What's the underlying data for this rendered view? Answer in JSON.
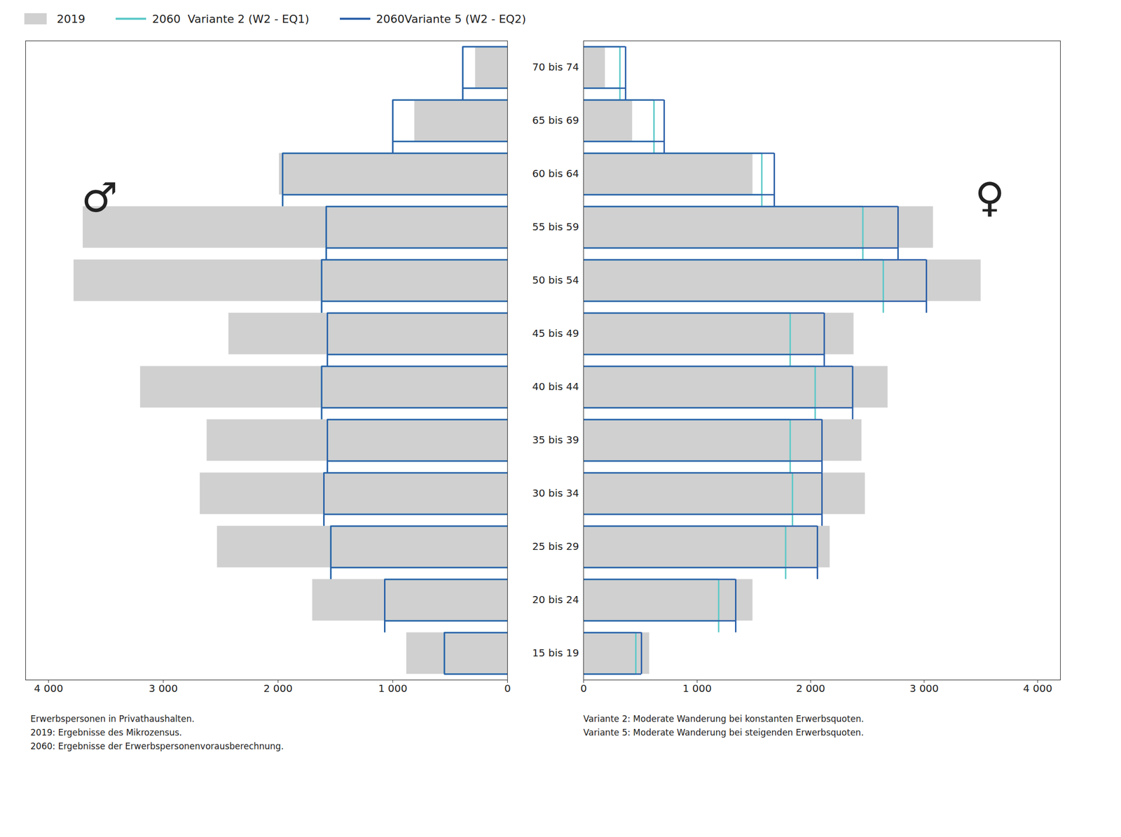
{
  "chart_data": [
    {
      "type": "bar",
      "orientation": "horizontal",
      "legend": "top",
      "tick_labels": "x",
      "annotations": [
        "♂"
      ],
      "caption": "Erwerbspersonen in Privathaushalten.\n2019: Ergebnisse des Mikrozensus.\n2060: Ergebnisse der Erwerbspersonenvorausberechnung.",
      "categories": [
        "70 bis 74",
        "65 bis 69",
        "60 bis 64",
        "55 bis 59",
        "50 bis 54",
        "45 bis 49",
        "40 bis 44",
        "35 bis 39",
        "30 bis 34",
        "25 bis 29",
        "20 bis 24",
        "15 bis 19"
      ],
      "series": [
        {
          "name": "2019",
          "type": "bar",
          "color": "#d0d0d0",
          "values": [
            280,
            810,
            1990,
            3700,
            3780,
            2430,
            3200,
            2620,
            2680,
            2530,
            1700,
            880
          ]
        },
        {
          "name": "2060  Variante 2 (W2 - EQ1)",
          "type": "step",
          "color": "#5bc8c8",
          "values": [
            390,
            1000,
            1960,
            1580,
            1620,
            1570,
            1620,
            1570,
            1600,
            1540,
            1070,
            550
          ]
        },
        {
          "name": "2060Variante 5 (W2 - EQ2)",
          "type": "step",
          "color": "#2a5fa8",
          "values": [
            390,
            1000,
            1960,
            1580,
            1620,
            1570,
            1620,
            1570,
            1600,
            1540,
            1070,
            550
          ]
        }
      ],
      "xlim": [
        4200,
        0
      ],
      "xticks": [
        {
          "value": 4000,
          "label": "4 000"
        },
        {
          "value": 3000,
          "label": "3 000"
        },
        {
          "value": 2000,
          "label": "2 000"
        },
        {
          "value": 1000,
          "label": "1 000"
        },
        0
      ]
    },
    {
      "type": "bar",
      "orientation": "horizontal",
      "legend": "top",
      "annotations": [
        "♀"
      ],
      "caption": "Variante 2: Moderate Wanderung bei konstanten Erwerbsquoten.\nVariante 5: Moderate Wanderung bei steigenden Erwerbsquoten.",
      "categories": [
        "70 bis 74",
        "65 bis 69",
        "60 bis 64",
        "55 bis 59",
        "50 bis 54",
        "45 bis 49",
        "40 bis 44",
        "35 bis 39",
        "30 bis 34",
        "25 bis 29",
        "20 bis 24",
        "15 bis 19"
      ],
      "series": [
        {
          "name": "2019",
          "type": "bar",
          "color": "#d0d0d0",
          "values": [
            190,
            430,
            1490,
            3080,
            3500,
            2380,
            2680,
            2450,
            2480,
            2170,
            1490,
            580
          ]
        },
        {
          "name": "2060  Variante 2 (W2 - EQ1)",
          "type": "step",
          "color": "#5bc8c8",
          "values": [
            320,
            620,
            1570,
            2460,
            2640,
            1820,
            2040,
            1820,
            1840,
            1780,
            1190,
            460
          ]
        },
        {
          "name": "2060Variante 5 (W2 - EQ2)",
          "type": "step",
          "color": "#2a5fa8",
          "values": [
            370,
            710,
            1680,
            2770,
            3020,
            2120,
            2370,
            2100,
            2100,
            2060,
            1340,
            510
          ]
        }
      ],
      "xlim": [
        0,
        4200
      ],
      "xticks": [
        0,
        {
          "value": 1000,
          "label": "1 000"
        },
        {
          "value": 2000,
          "label": "2 000"
        },
        {
          "value": 3000,
          "label": "3 000"
        },
        {
          "value": 4000,
          "label": "4 000"
        }
      ]
    }
  ]
}
